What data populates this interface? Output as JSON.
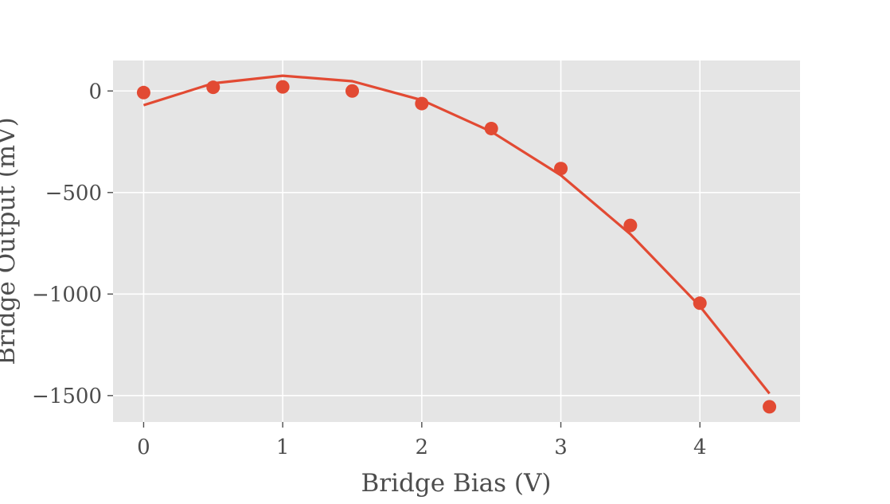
{
  "chart_data": {
    "type": "scatter",
    "title": "",
    "xlabel": "Bridge Bias (V)",
    "ylabel": "Bridge Output (mV)",
    "xlim": [
      -0.22,
      4.72
    ],
    "ylim": [
      -1630,
      150
    ],
    "grid": true,
    "legend": "none",
    "x_ticks": [
      0,
      1,
      2,
      3,
      4
    ],
    "x_tick_labels": [
      "0",
      "1",
      "2",
      "3",
      "4"
    ],
    "y_ticks": [
      0,
      -500,
      -1000,
      -1500
    ],
    "y_tick_labels": [
      "0",
      "−500",
      "−1000",
      "−1500"
    ],
    "series": [
      {
        "kind": "markers",
        "x": [
          0.0,
          0.5,
          1.0,
          1.5,
          2.0,
          2.5,
          3.0,
          3.5,
          4.0,
          4.5
        ],
        "y": [
          -8,
          18,
          20,
          0,
          -62,
          -185,
          -382,
          -662,
          -1045,
          -1555
        ]
      },
      {
        "kind": "line",
        "x": [
          0.0,
          0.5,
          1.0,
          1.5,
          2.0,
          2.5,
          3.0,
          3.5,
          4.0,
          4.5
        ],
        "y": [
          -70,
          38,
          75,
          48,
          -45,
          -200,
          -415,
          -705,
          -1060,
          -1490
        ]
      }
    ],
    "colors": {
      "series": "#e24a33",
      "plot_background": "#e5e5e5",
      "grid": "#ffffff",
      "text": "#4d4d4d"
    }
  }
}
